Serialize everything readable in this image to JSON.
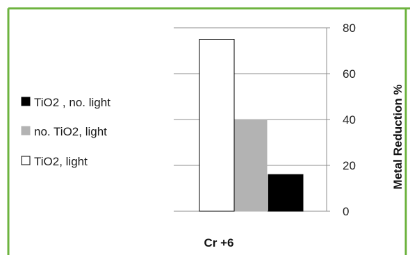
{
  "chart_data": {
    "type": "bar",
    "categories": [
      "Cr +6"
    ],
    "series": [
      {
        "name": "TiO2,  light",
        "values": [
          75
        ],
        "color": "#ffffff",
        "stroke": "#000000"
      },
      {
        "name": "no. TiO2,  light",
        "values": [
          40
        ],
        "color": "#b3b3b3",
        "stroke": "#b3b3b3"
      },
      {
        "name": "TiO2 , no. light",
        "values": [
          16
        ],
        "color": "#000000",
        "stroke": "#000000"
      }
    ],
    "legend_order": [
      {
        "name": "TiO2 , no. light",
        "color": "#000000",
        "marker": "■"
      },
      {
        "name": "no. TiO2,  light",
        "color": "#b3b3b3",
        "marker": "■"
      },
      {
        "name": "TiO2,  light",
        "color": "#ffffff",
        "marker": "□"
      }
    ],
    "ylabel": "Metal Reduction %",
    "ylim": [
      0,
      80
    ],
    "yticks": [
      0,
      20,
      40,
      60,
      80
    ],
    "y_axis_side": "right",
    "grid": true,
    "legend_position": "left"
  },
  "colors": {
    "border": "#6db33f",
    "gridline": "#8c8c8c"
  }
}
